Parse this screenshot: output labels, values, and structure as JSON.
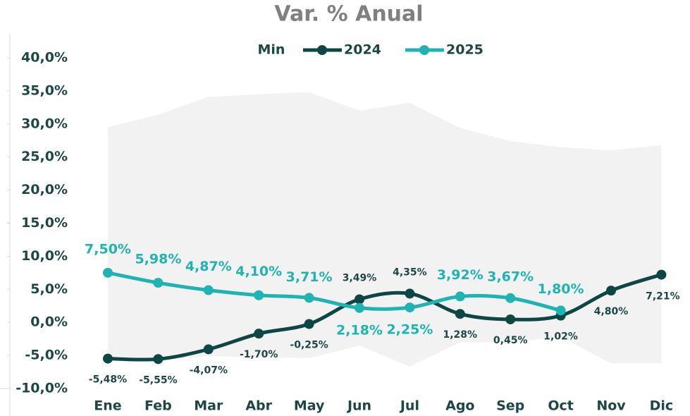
{
  "chart_data": {
    "type": "line",
    "title": "Var. % Anual",
    "categories": [
      "Ene",
      "Feb",
      "Mar",
      "Abr",
      "May",
      "Jun",
      "Jul",
      "Ago",
      "Sep",
      "Oct",
      "Nov",
      "Dic"
    ],
    "band": {
      "name": "Min",
      "color": "#f2f2f2",
      "low": [
        -5.7,
        -5.7,
        -5.1,
        -5.3,
        -5.4,
        -3.5,
        -6.7,
        -3.0,
        -3.0,
        -2.2,
        -6.2,
        -6.2
      ],
      "high": [
        29.5,
        31.4,
        34.1,
        34.5,
        34.8,
        32.0,
        33.2,
        29.4,
        27.4,
        26.5,
        26.0,
        26.8
      ]
    },
    "series": [
      {
        "name": "2024",
        "color": "#0d4743",
        "values": [
          -5.48,
          -5.55,
          -4.07,
          -1.7,
          -0.25,
          3.49,
          4.35,
          1.28,
          0.45,
          1.02,
          4.8,
          7.21
        ],
        "value_labels": [
          "-5,48%",
          "-5,55%",
          "-4,07%",
          "-1,70%",
          "-0,25%",
          "3,49%",
          "4,35%",
          "1,28%",
          "0,45%",
          "1,02%",
          "4,80%",
          "7,21%"
        ]
      },
      {
        "name": "2025",
        "color": "#1fb3b3",
        "values": [
          7.5,
          5.98,
          4.87,
          4.1,
          3.71,
          2.18,
          2.25,
          3.92,
          3.67,
          1.8,
          null,
          null
        ],
        "value_labels": [
          "7,50%",
          "5,98%",
          "4,87%",
          "4,10%",
          "3,71%",
          "2,18%",
          "2,25%",
          "3,92%",
          "3,67%",
          "1,80%",
          null,
          null
        ]
      }
    ],
    "ylim": [
      -10,
      40
    ],
    "yticks": [
      {
        "value": -10,
        "label": "-10,0%"
      },
      {
        "value": -5,
        "label": "-5,0%"
      },
      {
        "value": 0,
        "label": "0,0%"
      },
      {
        "value": 5,
        "label": "5,0%"
      },
      {
        "value": 10,
        "label": "10,0%"
      },
      {
        "value": 15,
        "label": "15,0%"
      },
      {
        "value": 20,
        "label": "20,0%"
      },
      {
        "value": 25,
        "label": "25,0%"
      },
      {
        "value": 30,
        "label": "30,0%"
      },
      {
        "value": 35,
        "label": "35,0%"
      },
      {
        "value": 40,
        "label": "40,0%"
      }
    ],
    "grid": false
  }
}
